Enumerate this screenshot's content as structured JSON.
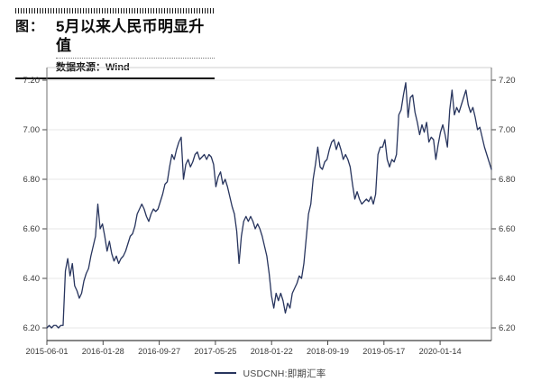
{
  "header": {
    "figure_label": "图：",
    "title": "5月以来人民币明显升值",
    "source": "数据来源：Wind"
  },
  "legend": {
    "label": "USDCNH:即期汇率"
  },
  "colors": {
    "line": "#28355e",
    "grid": "#e7e7e7",
    "frame_side": "#6f6f6f",
    "frame_top": "#cfcfcf",
    "frame_bottom": "#3f3f3f",
    "tick": "#4a4a4a",
    "axis_text": "#3a3a3a"
  },
  "chart_data": {
    "type": "line",
    "title": "5月以来人民币明显升值",
    "series_name": "USDCNH:即期汇率",
    "x_range": [
      "2015-06-01",
      "2020-09-02"
    ],
    "x_tick_labels": [
      "2015-06-01",
      "2016-01-28",
      "2016-09-27",
      "2017-05-25",
      "2018-01-22",
      "2018-09-19",
      "2019-05-17",
      "2020-01-14"
    ],
    "y_ticks": [
      6.2,
      6.4,
      6.6,
      6.8,
      7.0,
      7.2
    ],
    "ylim": [
      6.15,
      7.25
    ],
    "grid": "horizontal",
    "legend_position": "bottom-center",
    "sampling": "approx. every 10 days",
    "values": [
      6.2,
      6.21,
      6.2,
      6.21,
      6.21,
      6.2,
      6.21,
      6.21,
      6.43,
      6.48,
      6.41,
      6.46,
      6.37,
      6.35,
      6.32,
      6.34,
      6.39,
      6.42,
      6.44,
      6.49,
      6.53,
      6.57,
      6.7,
      6.6,
      6.62,
      6.57,
      6.51,
      6.55,
      6.5,
      6.47,
      6.49,
      6.46,
      6.48,
      6.49,
      6.51,
      6.54,
      6.57,
      6.58,
      6.61,
      6.66,
      6.68,
      6.7,
      6.68,
      6.65,
      6.63,
      6.66,
      6.68,
      6.67,
      6.68,
      6.71,
      6.74,
      6.78,
      6.79,
      6.85,
      6.9,
      6.88,
      6.92,
      6.95,
      6.97,
      6.8,
      6.86,
      6.88,
      6.85,
      6.87,
      6.9,
      6.91,
      6.88,
      6.89,
      6.9,
      6.88,
      6.9,
      6.89,
      6.86,
      6.77,
      6.81,
      6.83,
      6.78,
      6.8,
      6.77,
      6.73,
      6.69,
      6.66,
      6.59,
      6.46,
      6.57,
      6.63,
      6.65,
      6.63,
      6.65,
      6.63,
      6.6,
      6.62,
      6.6,
      6.57,
      6.53,
      6.49,
      6.42,
      6.33,
      6.28,
      6.34,
      6.31,
      6.34,
      6.31,
      6.26,
      6.3,
      6.28,
      6.34,
      6.36,
      6.38,
      6.41,
      6.4,
      6.46,
      6.56,
      6.66,
      6.7,
      6.8,
      6.86,
      6.93,
      6.85,
      6.84,
      6.87,
      6.88,
      6.92,
      6.95,
      6.96,
      6.92,
      6.95,
      6.92,
      6.88,
      6.9,
      6.88,
      6.85,
      6.78,
      6.72,
      6.75,
      6.72,
      6.7,
      6.71,
      6.72,
      6.71,
      6.73,
      6.7,
      6.74,
      6.9,
      6.93,
      6.93,
      6.96,
      6.88,
      6.85,
      6.88,
      6.87,
      6.9,
      7.06,
      7.08,
      7.14,
      7.19,
      7.05,
      7.13,
      7.14,
      7.07,
      7.03,
      6.98,
      7.02,
      6.99,
      7.03,
      6.95,
      6.97,
      6.96,
      6.88,
      6.94,
      6.99,
      7.02,
      6.98,
      6.93,
      7.08,
      7.16,
      7.06,
      7.09,
      7.07,
      7.1,
      7.13,
      7.16,
      7.1,
      7.07,
      7.09,
      7.05,
      7.0,
      7.01,
      6.97,
      6.93,
      6.9,
      6.87,
      6.84
    ]
  }
}
